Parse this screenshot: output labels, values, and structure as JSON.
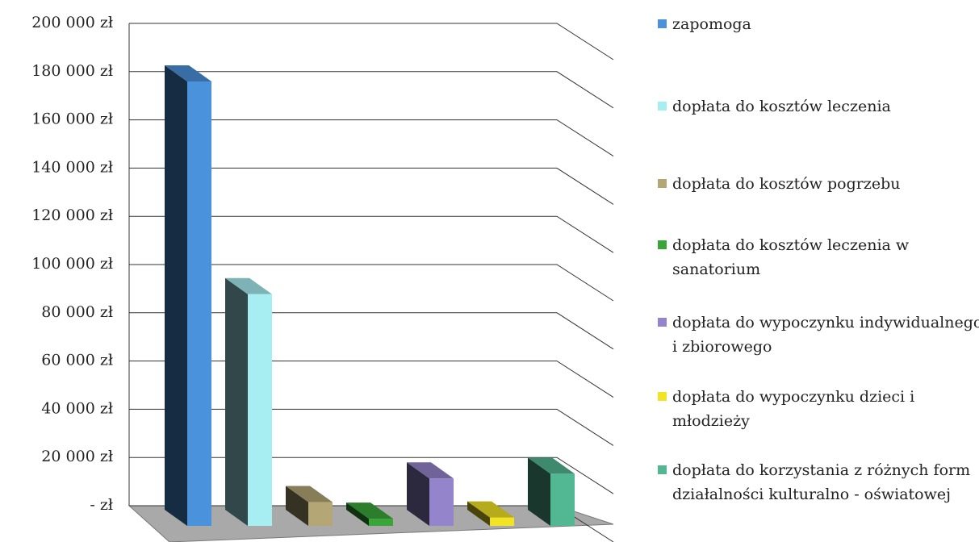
{
  "chart_data": {
    "type": "bar",
    "series": [
      {
        "name": "zapomoga",
        "color": "#4a93dc",
        "values": [
          186000
        ]
      },
      {
        "name": "dopłata do kosztów leczenia",
        "color": "#a6eef2",
        "values": [
          96000
        ]
      },
      {
        "name": "dopłata do kosztów pogrzebu",
        "color": "#b5a676",
        "values": [
          8000
        ]
      },
      {
        "name": "dopłata do kosztów leczenia w sanatorium",
        "color": "#3aa63a",
        "values": [
          1000
        ]
      },
      {
        "name": "dopłata do wypoczynku indywidualnego  i zbiorowego",
        "color": "#9484cc",
        "values": [
          18000
        ]
      },
      {
        "name": "dopłata do wypoczynku dzieci i młodzieży",
        "color": "#f2e424",
        "values": [
          1500
        ]
      },
      {
        "name": "dopłata do korzystania z różnych form działalności kulturalno - oświatowej",
        "color": "#52b894",
        "values": [
          20000
        ]
      }
    ],
    "ylim": [
      0,
      200000
    ],
    "yticks": [
      {
        "value": 0,
        "label": "- zł"
      },
      {
        "value": 20000,
        "label": "20 000 zł"
      },
      {
        "value": 40000,
        "label": "40 000 zł"
      },
      {
        "value": 60000,
        "label": "60 000 zł"
      },
      {
        "value": 80000,
        "label": "80 000 zł"
      },
      {
        "value": 100000,
        "label": "100 000 zł"
      },
      {
        "value": 120000,
        "label": "120 000 zł"
      },
      {
        "value": 140000,
        "label": "140 000 zł"
      },
      {
        "value": 160000,
        "label": "160 000 zł"
      },
      {
        "value": 180000,
        "label": "180 000 zł"
      },
      {
        "value": 200000,
        "label": "200 000 zł"
      }
    ],
    "grid": true
  }
}
